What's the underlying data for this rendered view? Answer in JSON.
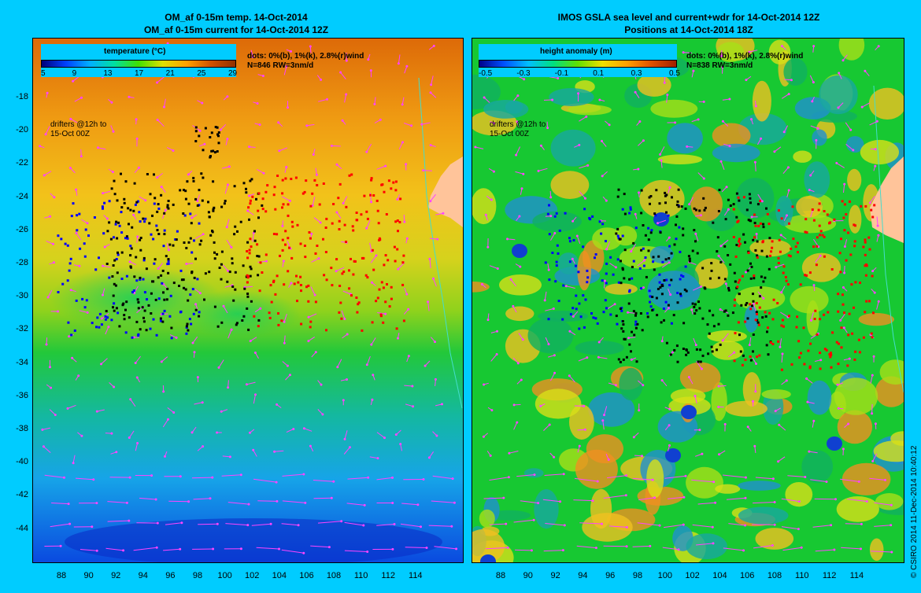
{
  "left_panel": {
    "title_line1": "OM_af 0-15m temp. 14-Oct-2014",
    "title_line2": "OM_af 0-15m current for 14-Oct-2014 12Z",
    "colorbar_title": "temperature (°C)",
    "colorbar_ticks": [
      "5",
      "9",
      "13",
      "17",
      "21",
      "25",
      "29"
    ],
    "info_line1": "dots: 0%(b), 1%(k), 2.8%(r)wind",
    "info_line2": "N=846 RW=3nm/d",
    "drifter_note_line1": "drifters @12h to",
    "drifter_note_line2": "15-Oct 00Z"
  },
  "right_panel": {
    "title_line1": "IMOS GSLA sea level and current+wdr for 14-Oct-2014 12Z",
    "title_line2": "Positions at 14-Oct-2014 18Z",
    "colorbar_title": "height anomaly (m)",
    "colorbar_ticks": [
      "-0.5",
      "-0.3",
      "-0.1",
      "0.1",
      "0.3",
      "0.5"
    ],
    "info_line1": "dots: 0%(b), 1%(k), 2.8%(r)wind",
    "info_line2": "N=838 RW=3nm/d",
    "drifter_note_line1": "drifters @12h to",
    "drifter_note_line2": "15-Oct 00Z"
  },
  "axes": {
    "lat_ticks": [
      "-18",
      "-20",
      "-22",
      "-24",
      "-26",
      "-28",
      "-30",
      "-32",
      "-34",
      "-36",
      "-38",
      "-40",
      "-42",
      "-44"
    ],
    "lon_ticks": [
      "88",
      "90",
      "92",
      "94",
      "96",
      "98",
      "100",
      "102",
      "104",
      "106",
      "108",
      "110",
      "112",
      "114"
    ]
  },
  "copyright": "© CSIRO 2014  11-Dec-2014 10:40:12",
  "colors": {
    "background": "#00ccff",
    "land": "#ffc49a",
    "vector": "#ff44ff",
    "dot_blue": "#0000ff",
    "dot_black": "#000000",
    "dot_red": "#ff0000"
  }
}
